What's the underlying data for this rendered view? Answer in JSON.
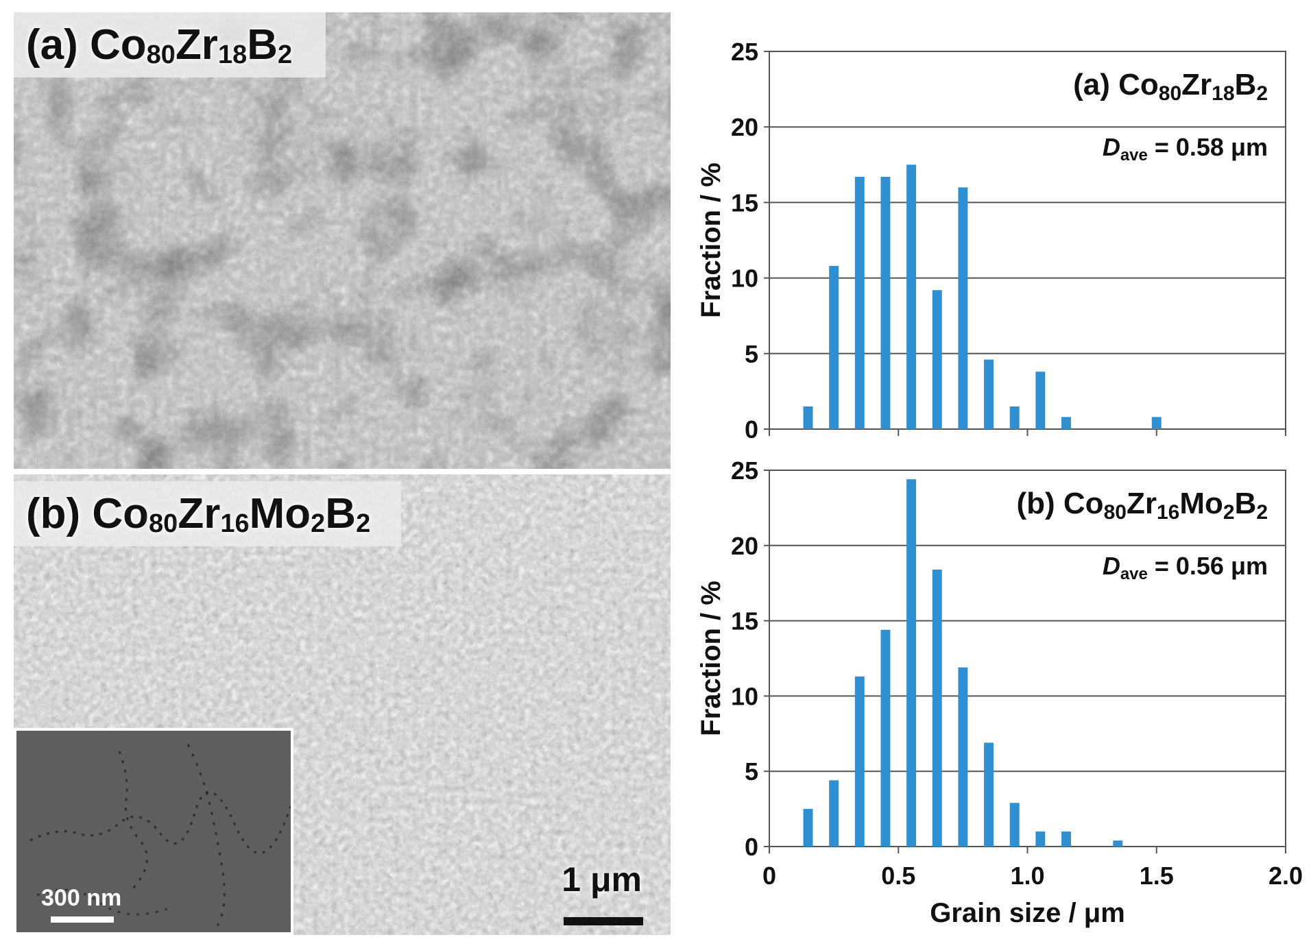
{
  "figure": {
    "sem_panels": [
      {
        "label_prefix": "(a) Co",
        "label_parts": [
          "(a) Co",
          "80",
          "Zr",
          "18",
          "B",
          "2"
        ],
        "scale_bar": ""
      },
      {
        "label_parts": [
          "(b) Co",
          "80",
          "Zr",
          "16",
          "Mo",
          "2",
          "B",
          "2"
        ],
        "scale_bar": "1 μm",
        "inset_scale_bar": "300 nm"
      }
    ]
  },
  "chart_data": [
    {
      "type": "bar",
      "panel_label_parts": [
        "(a) Co",
        "80",
        "Zr",
        "18",
        "B",
        "2"
      ],
      "annotation": {
        "symbol": "D",
        "subscript": "ave",
        "text": " = 0.58 μm"
      },
      "ylabel": "Fraction / %",
      "xlabel": "",
      "xlim": [
        0,
        2.0
      ],
      "ylim": [
        0,
        25
      ],
      "yticks": [
        "0",
        "5",
        "10",
        "15",
        "20",
        "25"
      ],
      "xticks": [],
      "x": [
        0.15,
        0.25,
        0.35,
        0.45,
        0.55,
        0.65,
        0.75,
        0.85,
        0.95,
        1.05,
        1.15,
        1.5
      ],
      "values": [
        1.5,
        10.8,
        16.7,
        16.7,
        17.5,
        9.2,
        16.0,
        4.6,
        1.5,
        3.8,
        0.8,
        0.8
      ],
      "bar_color": "#2f8fd0",
      "grid": true
    },
    {
      "type": "bar",
      "panel_label_parts": [
        "(b) Co",
        "80",
        "Zr",
        "16",
        "Mo",
        "2",
        "B",
        "2"
      ],
      "annotation": {
        "symbol": "D",
        "subscript": "ave",
        "text": " = 0.56 μm"
      },
      "ylabel": "Fraction / %",
      "xlabel": "Grain size / μm",
      "xlim": [
        0,
        2.0
      ],
      "ylim": [
        0,
        25
      ],
      "yticks": [
        "0",
        "5",
        "10",
        "15",
        "20",
        "25"
      ],
      "xticks": [
        "0",
        "0.5",
        "1.0",
        "1.5",
        "2.0"
      ],
      "x": [
        0.15,
        0.25,
        0.35,
        0.45,
        0.55,
        0.65,
        0.75,
        0.85,
        0.95,
        1.05,
        1.15,
        1.35
      ],
      "values": [
        2.5,
        4.4,
        11.3,
        14.4,
        24.4,
        18.4,
        11.9,
        6.9,
        2.9,
        1.0,
        1.0,
        0.4
      ],
      "bar_color": "#2f8fd0",
      "grid": true
    }
  ]
}
